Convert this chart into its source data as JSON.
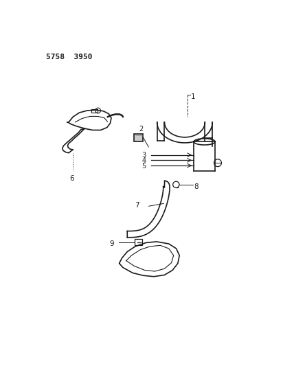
{
  "title": "5758  3950",
  "bg_color": "#ffffff",
  "line_color": "#1a1a1a",
  "label_color": "#1a1a1a",
  "fig_width": 4.28,
  "fig_height": 5.33,
  "dpi": 100
}
